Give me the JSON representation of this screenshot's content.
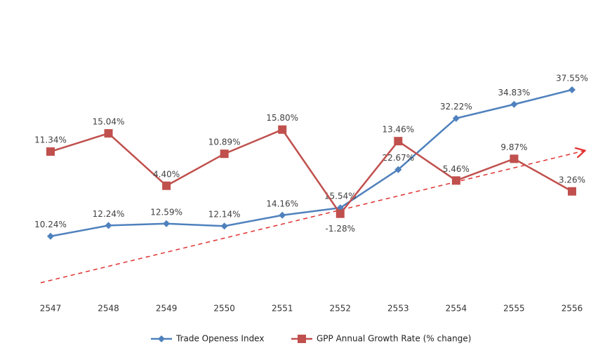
{
  "chart_data": {
    "type": "line",
    "categories": [
      "2547",
      "2548",
      "2549",
      "2550",
      "2551",
      "2552",
      "2553",
      "2554",
      "2555",
      "2556"
    ],
    "series": [
      {
        "name": "Trade Openess Index",
        "color": "#4f81bd",
        "marker": "diamond",
        "values": [
          10.24,
          12.24,
          12.59,
          12.14,
          14.16,
          15.54,
          22.67,
          32.22,
          34.83,
          37.55
        ],
        "value_labels": [
          "10.24%",
          "12.24%",
          "12.59%",
          "12.14%",
          "14.16%",
          "15.54%",
          "22.67%",
          "32.22%",
          "34.83%",
          "37.55%"
        ]
      },
      {
        "name": "GPP Annual Growth Rate (% change)",
        "color": "#c0504d",
        "marker": "square",
        "axis": "y2",
        "values": [
          11.34,
          15.04,
          4.4,
          10.89,
          15.8,
          -1.28,
          13.46,
          5.46,
          9.87,
          3.26
        ],
        "value_labels": [
          "11.34%",
          "15.04%",
          "4.40%",
          "10.89%",
          "15.80%",
          "-1.28%",
          "13.46%",
          "5.46%",
          "9.87%",
          "3.26%"
        ]
      }
    ],
    "ylim": [
      0,
      45
    ],
    "y2lim": [
      -17,
      32
    ],
    "legend": "bottom"
  }
}
